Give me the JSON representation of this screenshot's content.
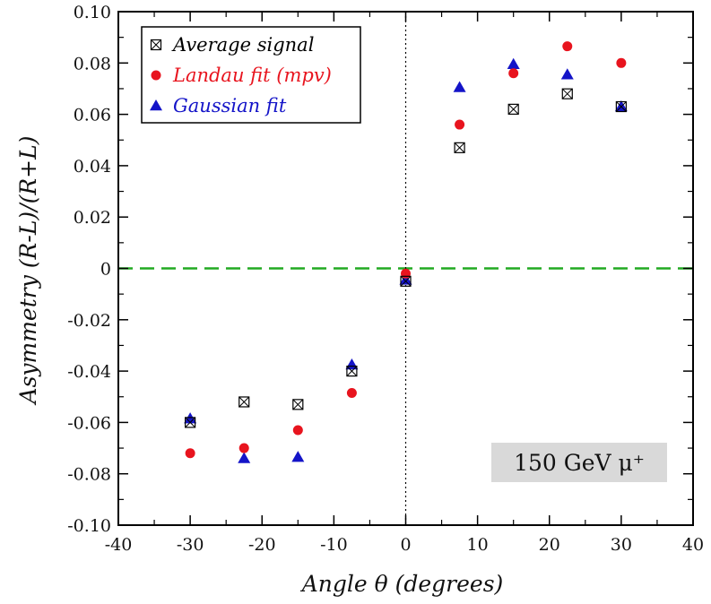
{
  "chart_data": {
    "type": "scatter",
    "xlabel": "Angle θ (degrees)",
    "ylabel": "Asymmetry (R-L)/(R+L)",
    "xlim": [
      -40,
      40
    ],
    "ylim": [
      -0.1,
      0.1
    ],
    "x_ticks": [
      -40,
      -30,
      -20,
      -10,
      0,
      10,
      20,
      30,
      40
    ],
    "y_ticks": [
      -0.1,
      -0.08,
      -0.06,
      -0.04,
      -0.02,
      0,
      0.02,
      0.04,
      0.06,
      0.08,
      0.1
    ],
    "x_tick_labels": [
      "-40",
      "-30",
      "-20",
      "-10",
      "0",
      "10",
      "20",
      "30",
      "40"
    ],
    "y_tick_labels": [
      "-0.10",
      "-0.08",
      "-0.06",
      "-0.04",
      "-0.02",
      "0",
      "0.02",
      "0.04",
      "0.06",
      "0.08",
      "0.10"
    ],
    "grid": false,
    "legend_position": "top-left",
    "series": [
      {
        "name": "Average signal",
        "marker": "boxed-x",
        "color": "#000000",
        "x": [
          -30,
          -22.5,
          -15,
          -7.5,
          0,
          7.5,
          15,
          22.5,
          30
        ],
        "y": [
          -0.06,
          -0.052,
          -0.053,
          -0.04,
          -0.005,
          0.047,
          0.062,
          0.068,
          0.063
        ]
      },
      {
        "name": "Landau fit (mpv)",
        "marker": "circle",
        "color": "#e8141e",
        "x": [
          -30,
          -22.5,
          -15,
          -7.5,
          0,
          7.5,
          15,
          22.5,
          30
        ],
        "y": [
          -0.072,
          -0.07,
          -0.063,
          -0.0485,
          -0.002,
          0.056,
          0.076,
          0.0865,
          0.08
        ]
      },
      {
        "name": "Gaussian fit",
        "marker": "triangle",
        "color": "#1414c8",
        "x": [
          -30,
          -22.5,
          -15,
          -7.5,
          0,
          7.5,
          15,
          22.5,
          30
        ],
        "y": [
          -0.0585,
          -0.074,
          -0.0735,
          -0.0375,
          -0.0045,
          0.0705,
          0.0795,
          0.0755,
          0.063
        ]
      }
    ],
    "reference_lines": [
      {
        "orientation": "horizontal",
        "value": 0,
        "style": "dashed",
        "color": "#22aa22"
      },
      {
        "orientation": "vertical",
        "value": 0,
        "style": "dotted",
        "color": "#000000"
      }
    ],
    "annotation": {
      "text": "150 GeV μ⁺",
      "position": "bottom-right",
      "background": "#d9d9d9"
    }
  }
}
